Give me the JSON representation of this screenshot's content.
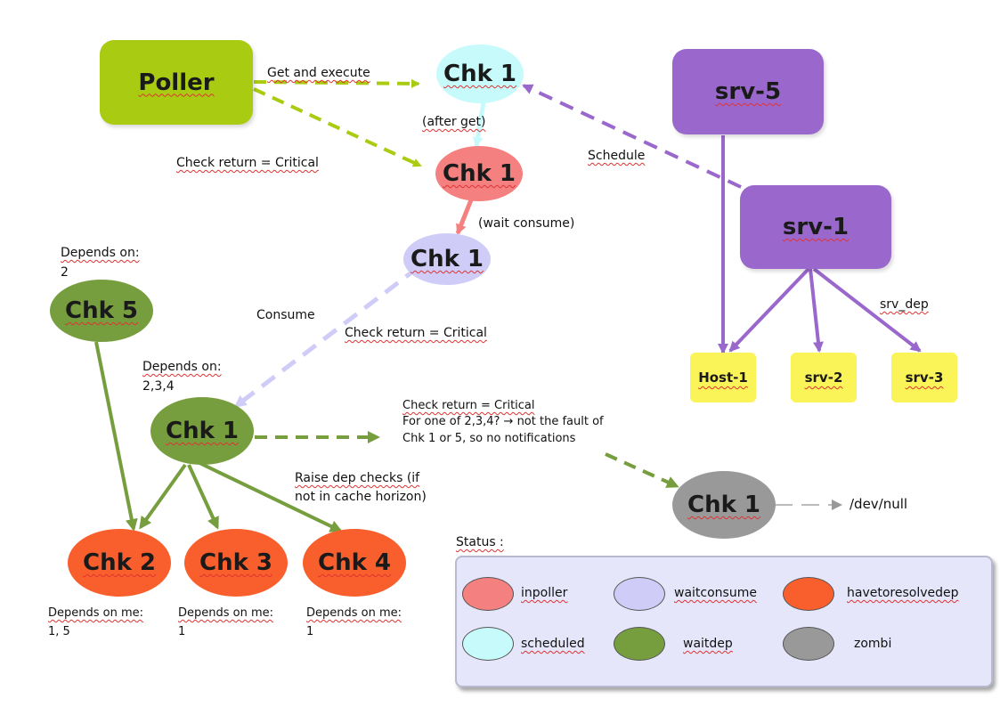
{
  "colors": {
    "poller": "#a9cc12",
    "inpoller": "#f58080",
    "waitconsume": "#cfccf8",
    "havetoresolvedep": "#f95f2c",
    "scheduled": "#c7fbfb",
    "waitdep": "#779e3e",
    "zombi": "#999999",
    "service": "#9a68cc",
    "host": "#fbf459"
  },
  "nodes": {
    "poller": "Poller",
    "chk_scheduled": "Chk 1",
    "chk_inpoller": "Chk 1",
    "chk_waitconsume": "Chk 1",
    "chk5": "Chk 5",
    "chk_waitdep": "Chk 1",
    "chk2": "Chk 2",
    "chk3": "Chk 3",
    "chk4": "Chk 4",
    "chk_zombi": "Chk 1",
    "srv5": "srv-5",
    "srv1": "srv-1",
    "host1": "Host-1",
    "srv2": "srv-2",
    "srv3": "srv-3"
  },
  "labels": {
    "get_execute": "Get and execute",
    "after_get": "(after get)",
    "check_return_1": "Check return = Critical",
    "schedule": "Schedule",
    "wait_consume": "(wait consume)",
    "depends_on_2_line1": "Depends on:",
    "depends_on_2_line2": "2",
    "consume": "Consume",
    "check_return_2": "Check return = Critical",
    "depends_on_234_line1": "Depends on:",
    "depends_on_234_line2": "2,3,4",
    "zombi_note_line1": "Check return = Critical",
    "zombi_note_line2": "For one of 2,3,4? → not the fault of",
    "zombi_note_line3": "Chk 1 or 5, so no notifications",
    "raise_line1": "Raise dep checks (if",
    "raise_line2": "not in cache horizon)",
    "dev_null": "/dev/null",
    "srv_dep": "srv_dep",
    "dep_me_2_line1": "Depends on me:",
    "dep_me_2_line2": "1, 5",
    "dep_me_3_line1": "Depends on me:",
    "dep_me_3_line2": "1",
    "dep_me_4_line1": "Depends on me:",
    "dep_me_4_line2": "1",
    "status": "Status :"
  },
  "legend": {
    "inpoller": "inpoller",
    "waitconsume": "waitconsume",
    "havetoresolvedep": "havetoresolvedep",
    "scheduled": "scheduled",
    "waitdep": "waitdep",
    "zombi": "zombi"
  }
}
